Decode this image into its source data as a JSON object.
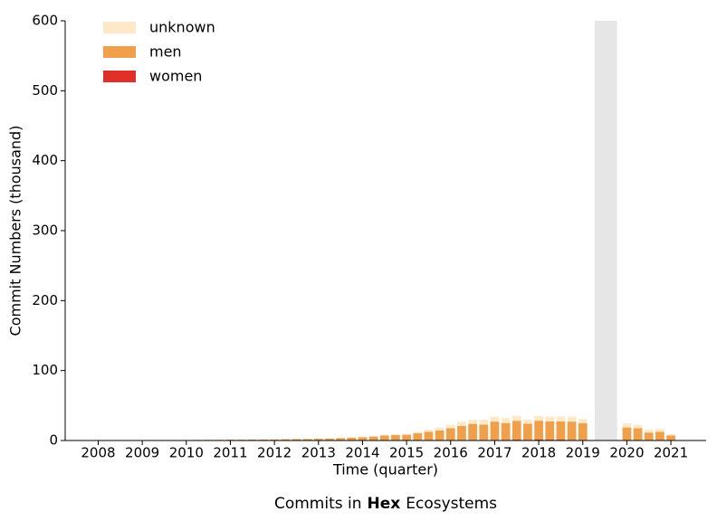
{
  "chart_data": {
    "type": "stacked-bar",
    "title": [
      "Commits in",
      "Hex",
      "Ecosystems"
    ],
    "xlabel": "Time (quarter)",
    "ylabel": "Commit Numbers (thousand)",
    "x": [
      2010.25,
      2010.5,
      2010.75,
      2011,
      2011.25,
      2011.5,
      2011.75,
      2012,
      2012.25,
      2012.5,
      2012.75,
      2013,
      2013.25,
      2013.5,
      2013.75,
      2014,
      2014.25,
      2014.5,
      2014.75,
      2015,
      2015.25,
      2015.5,
      2015.75,
      2016,
      2016.25,
      2016.5,
      2016.75,
      2017,
      2017.25,
      2017.5,
      2017.75,
      2018,
      2018.25,
      2018.5,
      2018.75,
      2019,
      2020,
      2020.25,
      2020.5,
      2020.75,
      2021
    ],
    "series": [
      {
        "name": "women",
        "color": "#e0302a",
        "values": [
          0,
          0,
          0,
          0,
          0,
          0,
          0,
          0,
          0,
          0,
          0,
          0,
          0,
          0,
          0,
          0.1,
          0.1,
          0.1,
          0.2,
          0.2,
          0.3,
          0.3,
          0.4,
          0.5,
          0.7,
          0.8,
          0.8,
          1,
          1,
          1.2,
          1,
          1.3,
          1.2,
          1.2,
          1,
          0.9,
          0.6,
          0.5,
          0.4,
          0.4,
          0.2
        ]
      },
      {
        "name": "men",
        "color": "#f0a04b",
        "values": [
          0.8,
          1,
          1,
          1.2,
          1.2,
          1.3,
          1.5,
          1.5,
          1.8,
          2,
          2.2,
          2.5,
          2.8,
          3.5,
          4,
          4.5,
          5.5,
          7,
          7.5,
          8,
          10,
          12,
          14,
          17,
          20,
          23,
          22,
          26,
          24,
          27,
          23,
          27,
          26,
          26,
          26,
          24,
          18,
          17,
          11,
          12,
          7
        ]
      },
      {
        "name": "unknown",
        "color": "#fde8c8",
        "values": [
          0.2,
          0.2,
          0.3,
          0.3,
          0.3,
          0.3,
          0.3,
          0.3,
          0.4,
          0.4,
          0.4,
          0.5,
          0.5,
          0.6,
          0.7,
          0.8,
          1,
          1,
          1.2,
          1.5,
          2,
          3,
          4,
          5,
          6,
          6,
          7,
          7,
          7,
          7,
          6,
          7,
          7,
          7,
          7,
          6,
          6,
          5,
          4,
          4,
          2
        ]
      }
    ],
    "xlim": [
      2007.25,
      2021.8
    ],
    "xticks": [
      2008,
      2009,
      2010,
      2011,
      2012,
      2013,
      2014,
      2015,
      2016,
      2017,
      2018,
      2019,
      2020,
      2021
    ],
    "ylim": [
      0,
      600
    ],
    "yticks": [
      0,
      100,
      200,
      300,
      400,
      500,
      600
    ],
    "shaded_span": [
      2019.27,
      2019.78
    ],
    "shade_color": "#e6e6e6",
    "legend": "upper left",
    "grid": false
  }
}
